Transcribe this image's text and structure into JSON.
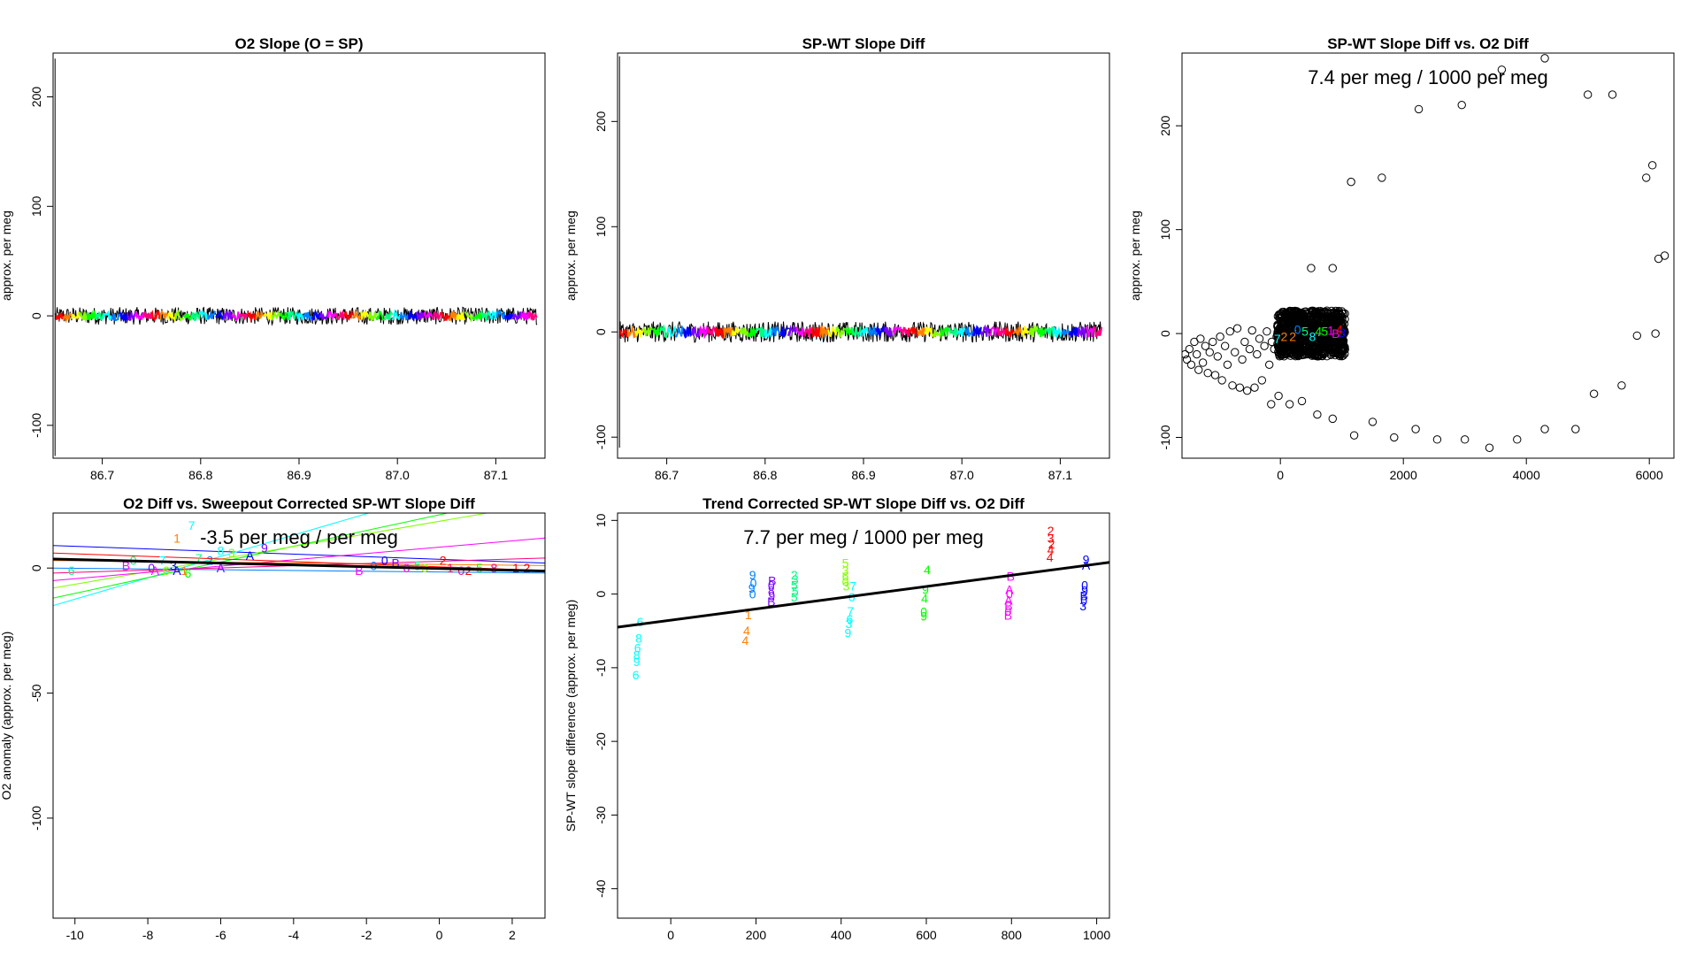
{
  "palette": [
    "#ff0000",
    "#ff7f00",
    "#ffff00",
    "#7fff00",
    "#00ff00",
    "#00ff7f",
    "#00ffff",
    "#007fff",
    "#0000ff",
    "#7f00ff",
    "#ff00ff",
    "#ff007f"
  ],
  "chart_data": [
    {
      "id": "p1",
      "type": "line",
      "title": "O2 Slope (O = SP)",
      "xlabel": "",
      "ylabel": "approx. per meg",
      "xlim": [
        86.65,
        87.15
      ],
      "ylim": [
        -130,
        240
      ],
      "xticks": [
        86.7,
        86.8,
        86.9,
        87.0,
        87.1
      ],
      "xtick_labels": [
        "86.7",
        "86.8",
        "86.9",
        "87.0",
        "87.1"
      ],
      "yticks": [
        -100,
        0,
        100,
        200
      ],
      "ytick_labels": [
        "-100",
        "0",
        "100",
        "200"
      ],
      "spike": {
        "x": 86.652,
        "ymax": 235,
        "ymin": -128
      },
      "noise": {
        "x_start": 86.652,
        "x_end": 87.142,
        "center": 0,
        "amp": 8,
        "band": 4
      },
      "annotation": ""
    },
    {
      "id": "p2",
      "type": "line",
      "title": "SP-WT Slope Diff",
      "xlabel": "",
      "ylabel": "approx. per meg",
      "xlim": [
        86.65,
        87.15
      ],
      "ylim": [
        -120,
        265
      ],
      "xticks": [
        86.7,
        86.8,
        86.9,
        87.0,
        87.1
      ],
      "xtick_labels": [
        "86.7",
        "86.8",
        "86.9",
        "87.0",
        "87.1"
      ],
      "yticks": [
        -100,
        0,
        100,
        200
      ],
      "ytick_labels": [
        "-100",
        "0",
        "100",
        "200"
      ],
      "spike": {
        "x": 86.652,
        "ymax": 262,
        "ymin": -110
      },
      "noise": {
        "x_start": 86.652,
        "x_end": 87.142,
        "center": 0,
        "amp": 10,
        "band": 5
      },
      "annotation": ""
    },
    {
      "id": "p3",
      "type": "scatter",
      "title": "SP-WT Slope Diff vs. O2 Diff",
      "xlabel": "",
      "ylabel": "approx. per meg",
      "xlim": [
        -1600,
        6400
      ],
      "ylim": [
        -120,
        270
      ],
      "xticks": [
        0,
        2000,
        4000,
        6000
      ],
      "xtick_labels": [
        "0",
        "2000",
        "4000",
        "6000"
      ],
      "yticks": [
        -100,
        0,
        100,
        200
      ],
      "ytick_labels": [
        "-100",
        "0",
        "100",
        "200"
      ],
      "annotation": "7.4 per meg / 1000 per meg",
      "points": [
        [
          -1550,
          -20
        ],
        [
          -1520,
          -25
        ],
        [
          -1480,
          -15
        ],
        [
          -1450,
          -30
        ],
        [
          -1400,
          -8
        ],
        [
          -1360,
          -20
        ],
        [
          -1330,
          -35
        ],
        [
          -1300,
          -5
        ],
        [
          -1260,
          -28
        ],
        [
          -1220,
          -12
        ],
        [
          -1180,
          -38
        ],
        [
          -1150,
          -18
        ],
        [
          -1100,
          -8
        ],
        [
          -1060,
          -40
        ],
        [
          -1020,
          -22
        ],
        [
          -980,
          -3
        ],
        [
          -950,
          -45
        ],
        [
          -900,
          -12
        ],
        [
          -860,
          -30
        ],
        [
          -820,
          2
        ],
        [
          -780,
          -50
        ],
        [
          -740,
          -18
        ],
        [
          -700,
          5
        ],
        [
          -660,
          -52
        ],
        [
          -620,
          -25
        ],
        [
          -580,
          -8
        ],
        [
          -540,
          -55
        ],
        [
          -500,
          -15
        ],
        [
          -460,
          3
        ],
        [
          -420,
          -52
        ],
        [
          -380,
          -20
        ],
        [
          -340,
          -5
        ],
        [
          -300,
          -45
        ],
        [
          -260,
          -12
        ],
        [
          -220,
          2
        ],
        [
          -180,
          -30
        ],
        [
          -140,
          -8
        ],
        [
          -100,
          -15
        ],
        [
          -60,
          -3
        ],
        [
          -30,
          -10
        ],
        [
          -150,
          -68
        ],
        [
          -30,
          -60
        ],
        [
          150,
          -68
        ],
        [
          350,
          -65
        ],
        [
          600,
          -78
        ],
        [
          850,
          -82
        ],
        [
          1200,
          -98
        ],
        [
          1500,
          -85
        ],
        [
          1850,
          -100
        ],
        [
          2200,
          -92
        ],
        [
          2550,
          -102
        ],
        [
          3000,
          -102
        ],
        [
          3400,
          -110
        ],
        [
          3850,
          -102
        ],
        [
          4300,
          -92
        ],
        [
          4800,
          -92
        ],
        [
          5100,
          -58
        ],
        [
          5550,
          -50
        ],
        [
          5800,
          -2
        ],
        [
          6100,
          0
        ],
        [
          6150,
          72
        ],
        [
          6250,
          75
        ],
        [
          6050,
          162
        ],
        [
          5950,
          150
        ],
        [
          5400,
          230
        ],
        [
          5000,
          230
        ],
        [
          4300,
          265
        ],
        [
          3600,
          254
        ],
        [
          2950,
          220
        ],
        [
          2250,
          216
        ],
        [
          1650,
          150
        ],
        [
          1150,
          146
        ],
        [
          500,
          63
        ],
        [
          850,
          63
        ]
      ],
      "cluster": {
        "x_start": -50,
        "x_end": 1050,
        "y_center": 0,
        "y_spread": 22
      },
      "digit_labels": [
        {
          "t": "7",
          "x": -50,
          "y": -5,
          "c": 6
        },
        {
          "t": "2",
          "x": 60,
          "y": -3,
          "c": 1
        },
        {
          "t": "2",
          "x": 200,
          "y": -3,
          "c": 1
        },
        {
          "t": "0",
          "x": 280,
          "y": 4,
          "c": 7
        },
        {
          "t": "5",
          "x": 400,
          "y": 2,
          "c": 5
        },
        {
          "t": "8",
          "x": 520,
          "y": -3,
          "c": 6
        },
        {
          "t": "4",
          "x": 620,
          "y": 2,
          "c": 4
        },
        {
          "t": "5",
          "x": 720,
          "y": 2,
          "c": 4
        },
        {
          "t": "1",
          "x": 820,
          "y": 3,
          "c": 10
        },
        {
          "t": "B",
          "x": 900,
          "y": 0,
          "c": 10
        },
        {
          "t": "4",
          "x": 960,
          "y": 4,
          "c": 0
        },
        {
          "t": "3",
          "x": 1010,
          "y": 1,
          "c": 8
        }
      ]
    },
    {
      "id": "p4",
      "type": "scatter",
      "title": "O2 Diff vs. Sweepout Corrected SP-WT Slope Diff",
      "xlabel": "",
      "ylabel": "O2 anomaly (approx. per meg)",
      "xlim": [
        -10.6,
        2.9
      ],
      "ylim": [
        -140,
        22
      ],
      "xticks": [
        -10,
        -8,
        -6,
        -4,
        -2,
        0,
        2
      ],
      "xtick_labels": [
        "-10",
        "-8",
        "-6",
        "-4",
        "-2",
        "0",
        "2"
      ],
      "yticks": [
        -100,
        -50,
        0
      ],
      "ytick_labels": [
        "-100",
        "-50",
        "0"
      ],
      "annotation": "-3.5 per meg / per meg",
      "fit_line": {
        "x1": -10.6,
        "y1": 3.6,
        "x2": 2.9,
        "y2": -1.2
      },
      "colored_lines": [
        {
          "x1": -10.6,
          "y1": 9,
          "x2": 2.9,
          "y2": 2,
          "c": 8
        },
        {
          "x1": -10.6,
          "y1": -15,
          "x2": -1.0,
          "y2": 26,
          "c": 6
        },
        {
          "x1": -10.6,
          "y1": -12,
          "x2": 1.5,
          "y2": 26,
          "c": 4
        },
        {
          "x1": -10.6,
          "y1": -8,
          "x2": 2.9,
          "y2": 26,
          "c": 3
        },
        {
          "x1": -10.6,
          "y1": -5,
          "x2": 2.9,
          "y2": 12,
          "c": 10
        },
        {
          "x1": -10.6,
          "y1": -2,
          "x2": 2.9,
          "y2": 4,
          "c": 11
        },
        {
          "x1": -10.6,
          "y1": 3,
          "x2": 2.9,
          "y2": 1,
          "c": 1
        },
        {
          "x1": -10.6,
          "y1": 6,
          "x2": 2.9,
          "y2": -1,
          "c": 0
        },
        {
          "x1": -10.6,
          "y1": 0,
          "x2": 2.9,
          "y2": -2,
          "c": 7
        }
      ],
      "digit_labels": [
        {
          "t": "7",
          "x": -6.8,
          "y": 17,
          "c": 6
        },
        {
          "t": "1",
          "x": -7.2,
          "y": 12,
          "c": 1
        },
        {
          "t": "6",
          "x": -10.1,
          "y": -1,
          "c": 5
        },
        {
          "t": "B",
          "x": -8.6,
          "y": 1,
          "c": 10
        },
        {
          "t": "0",
          "x": -8.4,
          "y": 3,
          "c": 5
        },
        {
          "t": "0",
          "x": -7.9,
          "y": 0,
          "c": 9
        },
        {
          "t": "7",
          "x": -7.6,
          "y": 3,
          "c": 6
        },
        {
          "t": "A",
          "x": -7.8,
          "y": -1,
          "c": 10
        },
        {
          "t": "6",
          "x": -7.5,
          "y": -1,
          "c": 3
        },
        {
          "t": "3",
          "x": -7.3,
          "y": 1,
          "c": 8
        },
        {
          "t": "A",
          "x": -7.2,
          "y": -1,
          "c": 8
        },
        {
          "t": "1",
          "x": -7.0,
          "y": -1,
          "c": 1
        },
        {
          "t": "6",
          "x": -6.9,
          "y": -2,
          "c": 4
        },
        {
          "t": "7",
          "x": -6.6,
          "y": 4,
          "c": 5
        },
        {
          "t": "2",
          "x": -6.3,
          "y": 3,
          "c": 7
        },
        {
          "t": "8",
          "x": -6.0,
          "y": 7,
          "c": 6
        },
        {
          "t": "3",
          "x": -5.7,
          "y": 6,
          "c": 3
        },
        {
          "t": "A",
          "x": -5.2,
          "y": 5,
          "c": 8
        },
        {
          "t": "9",
          "x": -4.8,
          "y": 8,
          "c": 9
        },
        {
          "t": "A",
          "x": -6.0,
          "y": 0,
          "c": 9
        },
        {
          "t": "B",
          "x": -2.2,
          "y": -1,
          "c": 10
        },
        {
          "t": "0",
          "x": -1.8,
          "y": 1,
          "c": 7
        },
        {
          "t": "0",
          "x": -1.5,
          "y": 3,
          "c": 8
        },
        {
          "t": "B",
          "x": -1.2,
          "y": 2,
          "c": 9
        },
        {
          "t": "0",
          "x": -0.9,
          "y": 0,
          "c": 10
        },
        {
          "t": "5",
          "x": -0.6,
          "y": 1,
          "c": 5
        },
        {
          "t": "3",
          "x": -0.4,
          "y": 0,
          "c": 3
        },
        {
          "t": "2",
          "x": 0.1,
          "y": 3,
          "c": 0
        },
        {
          "t": "1",
          "x": 0.3,
          "y": 0,
          "c": 11
        },
        {
          "t": "0",
          "x": 0.6,
          "y": -1,
          "c": 11
        },
        {
          "t": "2",
          "x": 0.8,
          "y": -1,
          "c": 0
        },
        {
          "t": "5",
          "x": 1.1,
          "y": 0,
          "c": 4
        },
        {
          "t": "8",
          "x": 1.5,
          "y": 0,
          "c": 11
        },
        {
          "t": "1",
          "x": 2.1,
          "y": 0,
          "c": 0
        },
        {
          "t": "2",
          "x": 2.4,
          "y": 0,
          "c": 0
        }
      ]
    },
    {
      "id": "p5",
      "type": "scatter",
      "title": "Trend Corrected SP-WT Slope Diff vs. O2 Diff",
      "xlabel": "",
      "ylabel": "SP-WT slope difference (approx. per meg)",
      "xlim": [
        -125,
        1030
      ],
      "ylim": [
        -44,
        11
      ],
      "xticks": [
        0,
        200,
        400,
        600,
        800,
        1000
      ],
      "xtick_labels": [
        "0",
        "200",
        "400",
        "600",
        "800",
        "1000"
      ],
      "yticks": [
        -40,
        -30,
        -20,
        -10,
        0,
        10
      ],
      "ytick_labels": [
        "-40",
        "-30",
        "-20",
        "-10",
        "0",
        "10"
      ],
      "annotation": "7.7 per meg / 1000 per meg",
      "fit_line": {
        "x1": -125,
        "y1": -4.5,
        "x2": 1030,
        "y2": 4.3
      },
      "digit_labels": [
        {
          "t": "6",
          "x": -72,
          "y": -3.8,
          "c": 6
        },
        {
          "t": "8",
          "x": -75,
          "y": -6,
          "c": 6
        },
        {
          "t": "6",
          "x": -78,
          "y": -7.3,
          "c": 6
        },
        {
          "t": "8",
          "x": -80,
          "y": -8.3,
          "c": 6
        },
        {
          "t": "9",
          "x": -80,
          "y": -9.2,
          "c": 6
        },
        {
          "t": "6",
          "x": -82,
          "y": -11,
          "c": 6
        },
        {
          "t": "1",
          "x": 182,
          "y": -2.8,
          "c": 1
        },
        {
          "t": "4",
          "x": 178,
          "y": -5,
          "c": 1
        },
        {
          "t": "4",
          "x": 175,
          "y": -6.3,
          "c": 1
        },
        {
          "t": "9",
          "x": 192,
          "y": 2.6,
          "c": 7
        },
        {
          "t": "0",
          "x": 194,
          "y": 1.5,
          "c": 7
        },
        {
          "t": "9",
          "x": 190,
          "y": 0.8,
          "c": 7
        },
        {
          "t": "0",
          "x": 192,
          "y": 0,
          "c": 7
        },
        {
          "t": "B",
          "x": 238,
          "y": 1.8,
          "c": 9
        },
        {
          "t": "0",
          "x": 236,
          "y": 1.2,
          "c": 9
        },
        {
          "t": "8",
          "x": 236,
          "y": 0.5,
          "c": 9
        },
        {
          "t": "9",
          "x": 237,
          "y": -0.2,
          "c": 9
        },
        {
          "t": "B",
          "x": 236,
          "y": -1,
          "c": 9
        },
        {
          "t": "2",
          "x": 290,
          "y": 2.6,
          "c": 5
        },
        {
          "t": "3",
          "x": 292,
          "y": 2,
          "c": 5
        },
        {
          "t": "5",
          "x": 290,
          "y": 1.2,
          "c": 5
        },
        {
          "t": "5",
          "x": 292,
          "y": 0.4,
          "c": 5
        },
        {
          "t": "5",
          "x": 290,
          "y": -0.4,
          "c": 5
        },
        {
          "t": "5",
          "x": 410,
          "y": 4.2,
          "c": 3
        },
        {
          "t": "3",
          "x": 410,
          "y": 3.2,
          "c": 3
        },
        {
          "t": "6",
          "x": 410,
          "y": 2.4,
          "c": 3
        },
        {
          "t": "0",
          "x": 410,
          "y": 1.7,
          "c": 3
        },
        {
          "t": "3",
          "x": 412,
          "y": 1.1,
          "c": 3
        },
        {
          "t": "7",
          "x": 428,
          "y": 1.1,
          "c": 6
        },
        {
          "t": "0",
          "x": 425,
          "y": -0.4,
          "c": 6
        },
        {
          "t": "7",
          "x": 422,
          "y": -2.3,
          "c": 6
        },
        {
          "t": "6",
          "x": 420,
          "y": -3.4,
          "c": 6
        },
        {
          "t": "3",
          "x": 418,
          "y": -4,
          "c": 6
        },
        {
          "t": "9",
          "x": 416,
          "y": -5.3,
          "c": 6
        },
        {
          "t": "4",
          "x": 602,
          "y": 3.3,
          "c": 4
        },
        {
          "t": "9",
          "x": 598,
          "y": 0.6,
          "c": 4
        },
        {
          "t": "4",
          "x": 596,
          "y": -0.6,
          "c": 4
        },
        {
          "t": "0",
          "x": 594,
          "y": -2.4,
          "c": 4
        },
        {
          "t": "9",
          "x": 594,
          "y": -3,
          "c": 4
        },
        {
          "t": "B",
          "x": 798,
          "y": 2.4,
          "c": 10
        },
        {
          "t": "A",
          "x": 795,
          "y": 0.6,
          "c": 10
        },
        {
          "t": "0",
          "x": 795,
          "y": 0,
          "c": 10
        },
        {
          "t": "A",
          "x": 793,
          "y": -0.8,
          "c": 10
        },
        {
          "t": "B",
          "x": 793,
          "y": -1.6,
          "c": 10
        },
        {
          "t": "0",
          "x": 792,
          "y": -2.3,
          "c": 10
        },
        {
          "t": "B",
          "x": 792,
          "y": -2.9,
          "c": 10
        },
        {
          "t": "2",
          "x": 892,
          "y": 8.6,
          "c": 0
        },
        {
          "t": "3",
          "x": 892,
          "y": 7.6,
          "c": 0
        },
        {
          "t": "2",
          "x": 894,
          "y": 6.8,
          "c": 0
        },
        {
          "t": "4",
          "x": 892,
          "y": 6,
          "c": 0
        },
        {
          "t": "4",
          "x": 890,
          "y": 5,
          "c": 0
        },
        {
          "t": "9",
          "x": 975,
          "y": 4.7,
          "c": 8
        },
        {
          "t": "A",
          "x": 975,
          "y": 3.9,
          "c": 8
        },
        {
          "t": "0",
          "x": 972,
          "y": 1.2,
          "c": 8
        },
        {
          "t": "9",
          "x": 972,
          "y": 0.5,
          "c": 8
        },
        {
          "t": "B",
          "x": 970,
          "y": -0.2,
          "c": 8
        },
        {
          "t": "0",
          "x": 970,
          "y": -0.9,
          "c": 8
        },
        {
          "t": "3",
          "x": 968,
          "y": -1.6,
          "c": 8
        }
      ]
    }
  ]
}
